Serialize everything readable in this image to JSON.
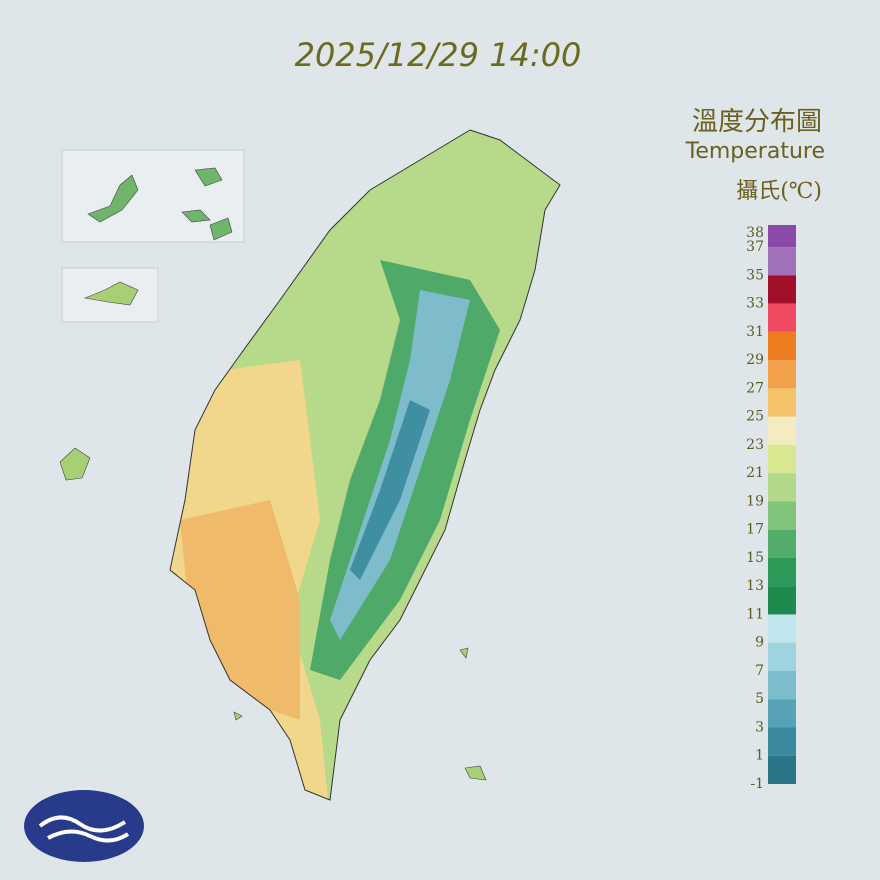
{
  "title": "2025/12/29 14:00",
  "legend": {
    "title": "溫度分布圖",
    "subtitle": "Temperature",
    "unit": "攝氏(℃)",
    "ticks": [
      38,
      37,
      35,
      33,
      31,
      29,
      27,
      25,
      23,
      21,
      19,
      17,
      15,
      13,
      11,
      9,
      7,
      5,
      3,
      1,
      -1
    ],
    "colors": [
      "#8a4aa8",
      "#a070b8",
      "#a0102a",
      "#f04a62",
      "#ee7d22",
      "#f2a04a",
      "#f5c36a",
      "#f3ecc0",
      "#d7e88e",
      "#b2d98a",
      "#82c47a",
      "#52ad6a",
      "#2d9a5a",
      "#1e8a4e",
      "#bfe6ec",
      "#9fd3df",
      "#7bbccd",
      "#57a2b6",
      "#3b8a9f",
      "#2a7688"
    ]
  }
}
